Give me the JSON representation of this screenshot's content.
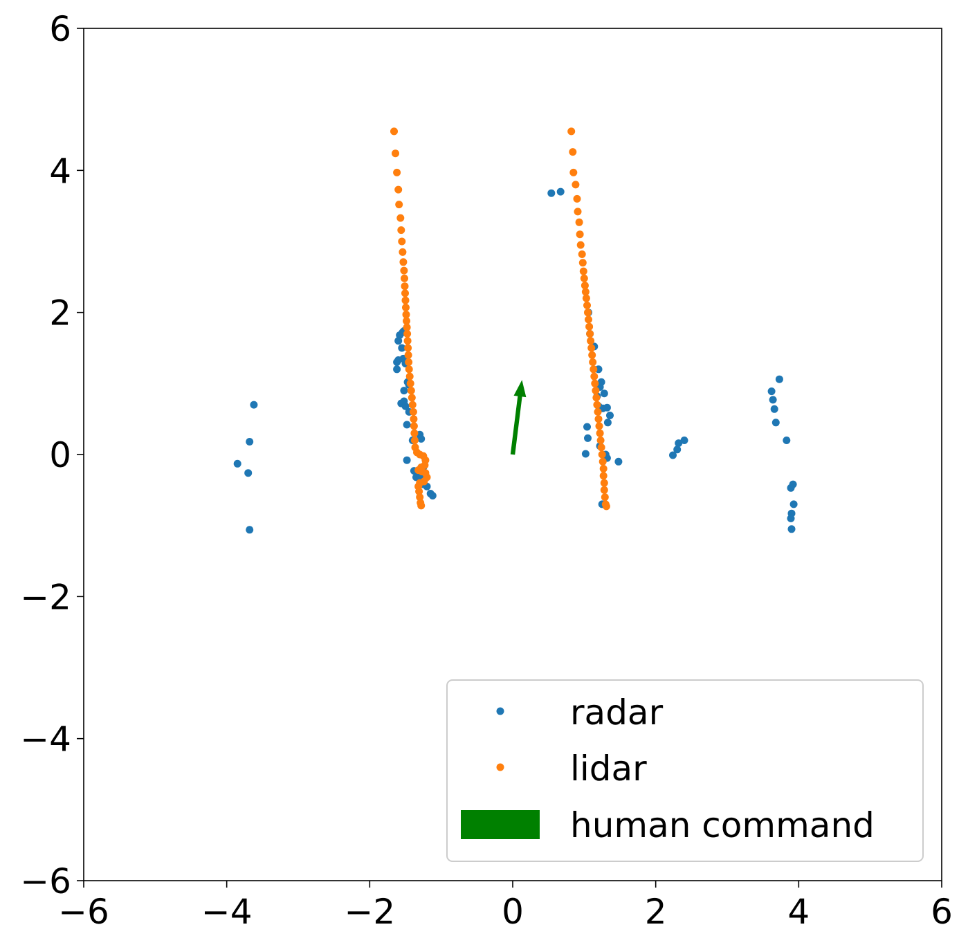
{
  "chart_data": {
    "type": "scatter",
    "title": "",
    "xlabel": "",
    "ylabel": "",
    "xlim": [
      -6,
      6
    ],
    "ylim": [
      -6,
      6
    ],
    "xticks": [
      "−6",
      "−4",
      "−2",
      "0",
      "2",
      "4",
      "6"
    ],
    "yticks": [
      "−6",
      "−4",
      "−2",
      "0",
      "2",
      "4",
      "6"
    ],
    "grid": false,
    "legend_position": "lower right",
    "series": [
      {
        "name": "radar",
        "color": "#1f77b4",
        "points": [
          [
            -3.62,
            0.7
          ],
          [
            -3.68,
            0.18
          ],
          [
            -3.85,
            -0.13
          ],
          [
            -3.7,
            -0.26
          ],
          [
            -3.68,
            -1.06
          ],
          [
            -1.58,
            1.68
          ],
          [
            -1.54,
            1.72
          ],
          [
            -1.52,
            1.74
          ],
          [
            -1.6,
            1.6
          ],
          [
            -1.62,
            1.3
          ],
          [
            -1.6,
            1.33
          ],
          [
            -1.55,
            1.5
          ],
          [
            -1.53,
            1.35
          ],
          [
            -1.5,
            1.28
          ],
          [
            -1.62,
            1.2
          ],
          [
            -1.47,
            1.02
          ],
          [
            -1.45,
            0.98
          ],
          [
            -1.52,
            0.9
          ],
          [
            -1.56,
            0.72
          ],
          [
            -1.52,
            0.75
          ],
          [
            -1.5,
            0.68
          ],
          [
            -1.45,
            0.6
          ],
          [
            -1.48,
            0.42
          ],
          [
            -1.4,
            0.2
          ],
          [
            -1.3,
            0.28
          ],
          [
            -1.28,
            0.22
          ],
          [
            -1.48,
            -0.08
          ],
          [
            -1.38,
            -0.23
          ],
          [
            -1.35,
            -0.32
          ],
          [
            -1.3,
            -0.3
          ],
          [
            -1.25,
            -0.18
          ],
          [
            -1.2,
            -0.45
          ],
          [
            -1.15,
            -0.55
          ],
          [
            -1.12,
            -0.58
          ],
          [
            -1.25,
            -0.42
          ],
          [
            0.54,
            3.68
          ],
          [
            0.67,
            3.7
          ],
          [
            1.06,
            2.0
          ],
          [
            1.08,
            1.7
          ],
          [
            1.14,
            1.52
          ],
          [
            1.2,
            1.2
          ],
          [
            1.24,
            1.02
          ],
          [
            1.22,
            0.95
          ],
          [
            1.28,
            0.86
          ],
          [
            1.18,
            0.82
          ],
          [
            1.2,
            0.68
          ],
          [
            1.26,
            0.65
          ],
          [
            1.32,
            0.66
          ],
          [
            1.36,
            0.55
          ],
          [
            1.33,
            0.45
          ],
          [
            1.04,
            0.39
          ],
          [
            1.05,
            0.23
          ],
          [
            1.22,
            0.12
          ],
          [
            1.3,
            0.0
          ],
          [
            1.32,
            -0.05
          ],
          [
            1.48,
            -0.1
          ],
          [
            1.02,
            0.01
          ],
          [
            1.25,
            -0.7
          ],
          [
            2.24,
            -0.01
          ],
          [
            2.3,
            0.07
          ],
          [
            2.32,
            0.16
          ],
          [
            2.4,
            0.2
          ],
          [
            3.73,
            1.06
          ],
          [
            3.62,
            0.89
          ],
          [
            3.64,
            0.77
          ],
          [
            3.66,
            0.64
          ],
          [
            3.68,
            0.45
          ],
          [
            3.83,
            0.2
          ],
          [
            3.92,
            -0.42
          ],
          [
            3.89,
            -0.47
          ],
          [
            3.93,
            -0.7
          ],
          [
            3.9,
            -0.83
          ],
          [
            3.89,
            -0.9
          ],
          [
            3.9,
            -1.05
          ]
        ]
      },
      {
        "name": "lidar",
        "color": "#ff7f0e",
        "points": [
          [
            -1.66,
            4.55
          ],
          [
            -1.64,
            4.24
          ],
          [
            -1.62,
            3.97
          ],
          [
            -1.6,
            3.73
          ],
          [
            -1.59,
            3.52
          ],
          [
            -1.57,
            3.33
          ],
          [
            -1.56,
            3.16
          ],
          [
            -1.55,
            3.0
          ],
          [
            -1.54,
            2.85
          ],
          [
            -1.53,
            2.71
          ],
          [
            -1.52,
            2.59
          ],
          [
            -1.515,
            2.48
          ],
          [
            -1.51,
            2.37
          ],
          [
            -1.505,
            2.27
          ],
          [
            -1.5,
            2.17
          ],
          [
            -1.495,
            2.07
          ],
          [
            -1.49,
            1.97
          ],
          [
            -1.485,
            1.88
          ],
          [
            -1.48,
            1.79
          ],
          [
            -1.475,
            1.7
          ],
          [
            -1.47,
            1.6
          ],
          [
            -1.465,
            1.5
          ],
          [
            -1.46,
            1.4
          ],
          [
            -1.455,
            1.3
          ],
          [
            -1.45,
            1.2
          ],
          [
            -1.44,
            1.1
          ],
          [
            -1.43,
            1.0
          ],
          [
            -1.42,
            0.9
          ],
          [
            -1.41,
            0.8
          ],
          [
            -1.4,
            0.7
          ],
          [
            -1.39,
            0.6
          ],
          [
            -1.385,
            0.5
          ],
          [
            -1.38,
            0.4
          ],
          [
            -1.375,
            0.3
          ],
          [
            -1.37,
            0.2
          ],
          [
            -1.365,
            0.1
          ],
          [
            -1.34,
            0.03
          ],
          [
            -1.3,
            0.0
          ],
          [
            -1.25,
            -0.02
          ],
          [
            -1.22,
            -0.08
          ],
          [
            -1.23,
            -0.15
          ],
          [
            -1.28,
            -0.18
          ],
          [
            -1.32,
            -0.22
          ],
          [
            -1.27,
            -0.24
          ],
          [
            -1.22,
            -0.26
          ],
          [
            -1.2,
            -0.32
          ],
          [
            -1.24,
            -0.38
          ],
          [
            -1.3,
            -0.4
          ],
          [
            -1.32,
            -0.45
          ],
          [
            -1.31,
            -0.52
          ],
          [
            -1.3,
            -0.6
          ],
          [
            -1.29,
            -0.68
          ],
          [
            -1.28,
            -0.72
          ],
          [
            0.82,
            4.55
          ],
          [
            0.84,
            4.26
          ],
          [
            0.85,
            3.97
          ],
          [
            0.88,
            3.8
          ],
          [
            0.9,
            3.6
          ],
          [
            0.91,
            3.42
          ],
          [
            0.93,
            3.27
          ],
          [
            0.94,
            3.1
          ],
          [
            0.95,
            2.95
          ],
          [
            0.97,
            2.82
          ],
          [
            0.98,
            2.7
          ],
          [
            0.99,
            2.58
          ],
          [
            1.0,
            2.48
          ],
          [
            1.01,
            2.38
          ],
          [
            1.02,
            2.29
          ],
          [
            1.03,
            2.2
          ],
          [
            1.04,
            2.1
          ],
          [
            1.05,
            2.0
          ],
          [
            1.06,
            1.9
          ],
          [
            1.07,
            1.8
          ],
          [
            1.08,
            1.7
          ],
          [
            1.09,
            1.6
          ],
          [
            1.1,
            1.5
          ],
          [
            1.11,
            1.4
          ],
          [
            1.12,
            1.3
          ],
          [
            1.13,
            1.2
          ],
          [
            1.14,
            1.1
          ],
          [
            1.15,
            1.0
          ],
          [
            1.16,
            0.9
          ],
          [
            1.17,
            0.8
          ],
          [
            1.18,
            0.7
          ],
          [
            1.19,
            0.6
          ],
          [
            1.2,
            0.5
          ],
          [
            1.21,
            0.4
          ],
          [
            1.22,
            0.3
          ],
          [
            1.23,
            0.2
          ],
          [
            1.24,
            0.1
          ],
          [
            1.25,
            0.0
          ],
          [
            1.26,
            -0.1
          ],
          [
            1.27,
            -0.2
          ],
          [
            1.27,
            -0.3
          ],
          [
            1.28,
            -0.4
          ],
          [
            1.28,
            -0.5
          ],
          [
            1.29,
            -0.6
          ],
          [
            1.3,
            -0.7
          ],
          [
            1.31,
            -0.73
          ]
        ]
      }
    ],
    "arrows": [
      {
        "name": "human command",
        "color": "#008000",
        "from": [
          0.0,
          0.0
        ],
        "to": [
          0.13,
          1.05
        ]
      }
    ],
    "legend": {
      "entries": [
        {
          "label": "radar",
          "marker": "point",
          "color": "#1f77b4"
        },
        {
          "label": "lidar",
          "marker": "point",
          "color": "#ff7f0e"
        },
        {
          "label": "human command",
          "marker": "patch",
          "color": "#008000"
        }
      ]
    }
  }
}
